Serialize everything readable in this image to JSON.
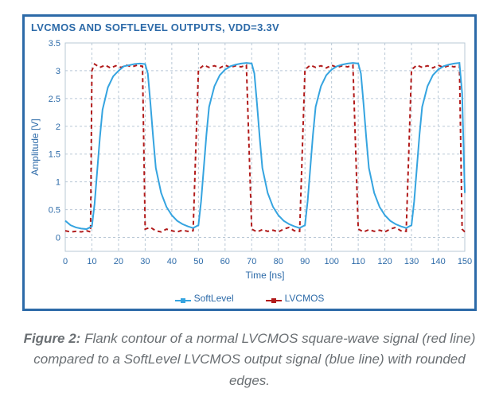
{
  "chart": {
    "type": "line",
    "title": "LVCMOS AND SOFTLEVEL OUTPUTS, VDD=3.3V",
    "title_color": "#2c6aa8",
    "title_fontsize": 13,
    "background_color": "#ffffff",
    "border_color": "#2c6aa8",
    "xlabel": "Time [ns]",
    "ylabel": "Amplitude [V]",
    "label_color": "#2c6aa8",
    "label_fontsize": 12,
    "xlim": [
      0,
      150
    ],
    "ylim": [
      -0.25,
      3.5
    ],
    "xtick_step": 10,
    "ytick_step": 0.5,
    "tick_color": "#2c6aa8",
    "tick_fontsize": 11,
    "grid_color": "#b9c8d6",
    "grid_dash": "3 3",
    "plot_area_border": "#b9c8d6",
    "series": {
      "softlevel": {
        "label": "SoftLevel",
        "color": "#35a4e0",
        "line_width": 2.0,
        "marker": "square",
        "marker_size": 4,
        "points": [
          [
            0,
            0.3
          ],
          [
            2,
            0.22
          ],
          [
            4,
            0.18
          ],
          [
            6,
            0.16
          ],
          [
            8,
            0.15
          ],
          [
            10,
            0.2
          ],
          [
            11,
            0.6
          ],
          [
            12,
            1.2
          ],
          [
            13,
            1.8
          ],
          [
            14,
            2.3
          ],
          [
            16,
            2.7
          ],
          [
            18,
            2.9
          ],
          [
            20,
            3.0
          ],
          [
            22,
            3.08
          ],
          [
            24,
            3.1
          ],
          [
            26,
            3.12
          ],
          [
            28,
            3.13
          ],
          [
            30,
            3.12
          ],
          [
            31,
            2.95
          ],
          [
            32,
            2.4
          ],
          [
            33,
            1.8
          ],
          [
            34,
            1.25
          ],
          [
            36,
            0.8
          ],
          [
            38,
            0.55
          ],
          [
            40,
            0.4
          ],
          [
            42,
            0.3
          ],
          [
            44,
            0.24
          ],
          [
            46,
            0.2
          ],
          [
            48,
            0.17
          ],
          [
            50,
            0.22
          ],
          [
            51,
            0.65
          ],
          [
            52,
            1.25
          ],
          [
            53,
            1.85
          ],
          [
            54,
            2.35
          ],
          [
            56,
            2.72
          ],
          [
            58,
            2.92
          ],
          [
            60,
            3.02
          ],
          [
            62,
            3.08
          ],
          [
            64,
            3.11
          ],
          [
            66,
            3.13
          ],
          [
            68,
            3.14
          ],
          [
            70,
            3.13
          ],
          [
            71,
            2.95
          ],
          [
            72,
            2.4
          ],
          [
            73,
            1.8
          ],
          [
            74,
            1.25
          ],
          [
            76,
            0.8
          ],
          [
            78,
            0.55
          ],
          [
            80,
            0.4
          ],
          [
            82,
            0.3
          ],
          [
            84,
            0.24
          ],
          [
            86,
            0.2
          ],
          [
            88,
            0.17
          ],
          [
            90,
            0.22
          ],
          [
            91,
            0.65
          ],
          [
            92,
            1.25
          ],
          [
            93,
            1.85
          ],
          [
            94,
            2.35
          ],
          [
            96,
            2.72
          ],
          [
            98,
            2.92
          ],
          [
            100,
            3.02
          ],
          [
            102,
            3.08
          ],
          [
            104,
            3.11
          ],
          [
            106,
            3.13
          ],
          [
            108,
            3.14
          ],
          [
            110,
            3.13
          ],
          [
            111,
            2.95
          ],
          [
            112,
            2.4
          ],
          [
            113,
            1.8
          ],
          [
            114,
            1.25
          ],
          [
            116,
            0.8
          ],
          [
            118,
            0.55
          ],
          [
            120,
            0.4
          ],
          [
            122,
            0.3
          ],
          [
            124,
            0.24
          ],
          [
            126,
            0.2
          ],
          [
            128,
            0.17
          ],
          [
            130,
            0.22
          ],
          [
            131,
            0.65
          ],
          [
            132,
            1.25
          ],
          [
            133,
            1.85
          ],
          [
            134,
            2.35
          ],
          [
            136,
            2.72
          ],
          [
            138,
            2.92
          ],
          [
            140,
            3.02
          ],
          [
            142,
            3.08
          ],
          [
            144,
            3.11
          ],
          [
            146,
            3.13
          ],
          [
            148,
            3.14
          ],
          [
            149,
            2.6
          ],
          [
            150,
            0.8
          ]
        ]
      },
      "lvcmos": {
        "label": "LVCMOS",
        "color": "#b11a1a",
        "line_width": 2.0,
        "dash": "5 4",
        "marker": "square",
        "marker_size": 4,
        "points": [
          [
            0,
            0.12
          ],
          [
            2,
            0.1
          ],
          [
            4,
            0.11
          ],
          [
            6,
            0.1
          ],
          [
            8,
            0.12
          ],
          [
            9.5,
            0.1
          ],
          [
            10,
            3.0
          ],
          [
            11,
            3.12
          ],
          [
            13,
            3.06
          ],
          [
            15,
            3.1
          ],
          [
            17,
            3.05
          ],
          [
            19,
            3.09
          ],
          [
            21,
            3.06
          ],
          [
            23,
            3.1
          ],
          [
            25,
            3.07
          ],
          [
            27,
            3.1
          ],
          [
            29,
            3.08
          ],
          [
            30,
            0.15
          ],
          [
            32,
            0.18
          ],
          [
            34,
            0.12
          ],
          [
            36,
            0.1
          ],
          [
            38,
            0.15
          ],
          [
            40,
            0.12
          ],
          [
            42,
            0.1
          ],
          [
            44,
            0.13
          ],
          [
            46,
            0.11
          ],
          [
            48,
            0.12
          ],
          [
            50,
            3.02
          ],
          [
            52,
            3.1
          ],
          [
            54,
            3.06
          ],
          [
            56,
            3.09
          ],
          [
            58,
            3.05
          ],
          [
            60,
            3.1
          ],
          [
            62,
            3.06
          ],
          [
            64,
            3.09
          ],
          [
            66,
            3.07
          ],
          [
            68,
            3.1
          ],
          [
            70,
            0.15
          ],
          [
            72,
            0.1
          ],
          [
            74,
            0.14
          ],
          [
            76,
            0.11
          ],
          [
            78,
            0.13
          ],
          [
            80,
            0.1
          ],
          [
            82,
            0.15
          ],
          [
            84,
            0.18
          ],
          [
            86,
            0.12
          ],
          [
            88,
            0.11
          ],
          [
            90,
            3.02
          ],
          [
            92,
            3.1
          ],
          [
            94,
            3.06
          ],
          [
            96,
            3.09
          ],
          [
            98,
            3.05
          ],
          [
            100,
            3.1
          ],
          [
            102,
            3.06
          ],
          [
            104,
            3.09
          ],
          [
            106,
            3.07
          ],
          [
            108,
            3.1
          ],
          [
            110,
            0.15
          ],
          [
            112,
            0.1
          ],
          [
            114,
            0.14
          ],
          [
            116,
            0.11
          ],
          [
            118,
            0.13
          ],
          [
            120,
            0.1
          ],
          [
            122,
            0.15
          ],
          [
            124,
            0.18
          ],
          [
            126,
            0.12
          ],
          [
            128,
            0.11
          ],
          [
            130,
            3.02
          ],
          [
            132,
            3.1
          ],
          [
            134,
            3.06
          ],
          [
            136,
            3.09
          ],
          [
            138,
            3.05
          ],
          [
            140,
            3.1
          ],
          [
            142,
            3.06
          ],
          [
            144,
            3.09
          ],
          [
            146,
            3.07
          ],
          [
            148,
            3.1
          ],
          [
            149,
            0.15
          ],
          [
            150,
            0.1
          ]
        ]
      }
    },
    "legend_position": "bottom_center"
  },
  "caption": {
    "prefix": "Figure 2:",
    "text": " Flank contour of a normal LVCMOS square-wave signal (red line) compared to a SoftLevel LVCMOS output signal (blue line) with rounded edges.",
    "color": "#6a6f73",
    "fontsize": 17
  }
}
